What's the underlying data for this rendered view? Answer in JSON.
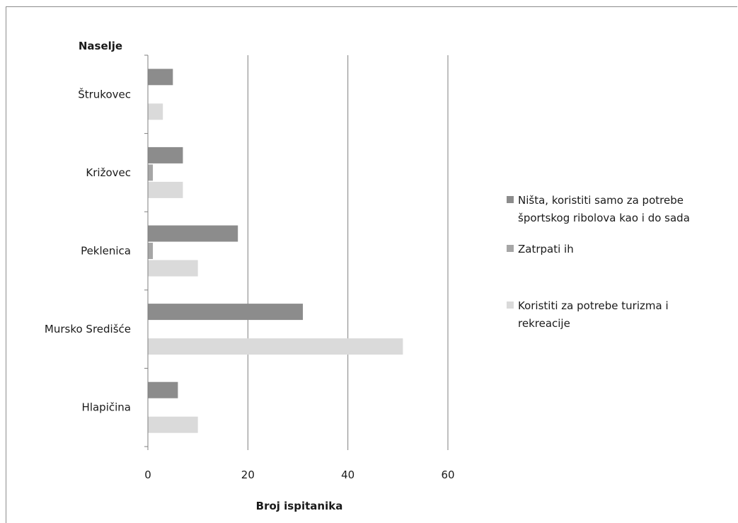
{
  "chart_data": {
    "type": "bar",
    "orientation": "horizontal",
    "title": "",
    "ylabel": "Naselje",
    "xlabel": "Broj ispitanika",
    "xlim": [
      0,
      60
    ],
    "xticks": [
      "0",
      "20",
      "40",
      "60"
    ],
    "grid": true,
    "legend_position": "right",
    "categories": [
      "Štrukovec",
      "Križovec",
      "Peklenica",
      "Mursko Središće",
      "Hlapičina"
    ],
    "series": [
      {
        "name": "Ništa, koristiti samo za potrebe športskog ribolova kao i do sada",
        "name_lines": [
          "Ništa, koristiti samo za potrebe",
          "športskog ribolova kao i do sada"
        ],
        "color": "#8c8c8c",
        "values": [
          5,
          7,
          18,
          31,
          6
        ]
      },
      {
        "name": "Zatrpati ih",
        "name_lines": [
          "Zatrpati ih"
        ],
        "color": "#a6a6a6",
        "values": [
          0,
          1,
          1,
          0,
          0
        ]
      },
      {
        "name": "Koristiti za potrebe turizma i rekreacije",
        "name_lines": [
          "Koristiti za potrebe turizma i",
          "rekreacije"
        ],
        "color": "#dadada",
        "values": [
          3,
          7,
          10,
          51,
          10
        ]
      }
    ]
  }
}
